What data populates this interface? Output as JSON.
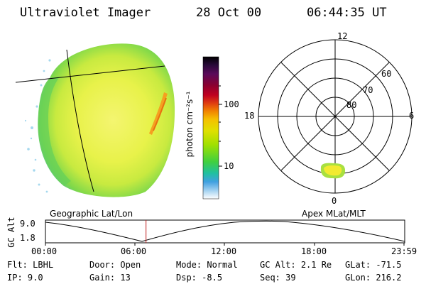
{
  "header": {
    "title": "Ultraviolet Imager",
    "date": "28 Oct 00",
    "time": "06:44:35 UT"
  },
  "colorbar": {
    "unit_label": "photon cm⁻²s⁻¹",
    "ticks": [
      "100",
      "10"
    ],
    "colors": [
      "#000000",
      "#2a0a3a",
      "#5a0a5a",
      "#8a0030",
      "#c00020",
      "#e04010",
      "#f08000",
      "#f5c000",
      "#e0e000",
      "#a0e000",
      "#40d040",
      "#20c0a0",
      "#40a0e0",
      "#a0d0f0",
      "#ffffff"
    ]
  },
  "left_panel": {
    "caption": "Geographic Lat/Lon"
  },
  "polar_plot": {
    "caption": "Apex MLat/MLT",
    "mlt_labels": {
      "top": "12",
      "right": "6",
      "bottom": "0",
      "left": "18"
    },
    "lat_labels": [
      "60",
      "70",
      "80"
    ]
  },
  "timeline": {
    "ylabel": "GC Alt",
    "ytick_top": "9.0",
    "ytick_bottom": "1.8",
    "xticks": [
      "00:00",
      "06:00",
      "12:00",
      "18:00",
      "23:59"
    ],
    "current_fraction": 0.28
  },
  "info": {
    "flt_label": "Flt:",
    "flt_value": "LBHL",
    "ip_label": "IP:",
    "ip_value": "9.0",
    "door_label": "Door:",
    "door_value": "Open",
    "gain_label": "Gain:",
    "gain_value": "13",
    "mode_label": "Mode:",
    "mode_value": "Normal",
    "dsp_label": "Dsp:",
    "dsp_value": "-8.5",
    "gcalt_label": "GC Alt:",
    "gcalt_value": "2.1 Re",
    "seq_label": "Seq:",
    "seq_value": "39",
    "glat_label": "GLat:",
    "glat_value": "-71.5",
    "glon_label": "GLon:",
    "glon_value": "216.2"
  }
}
